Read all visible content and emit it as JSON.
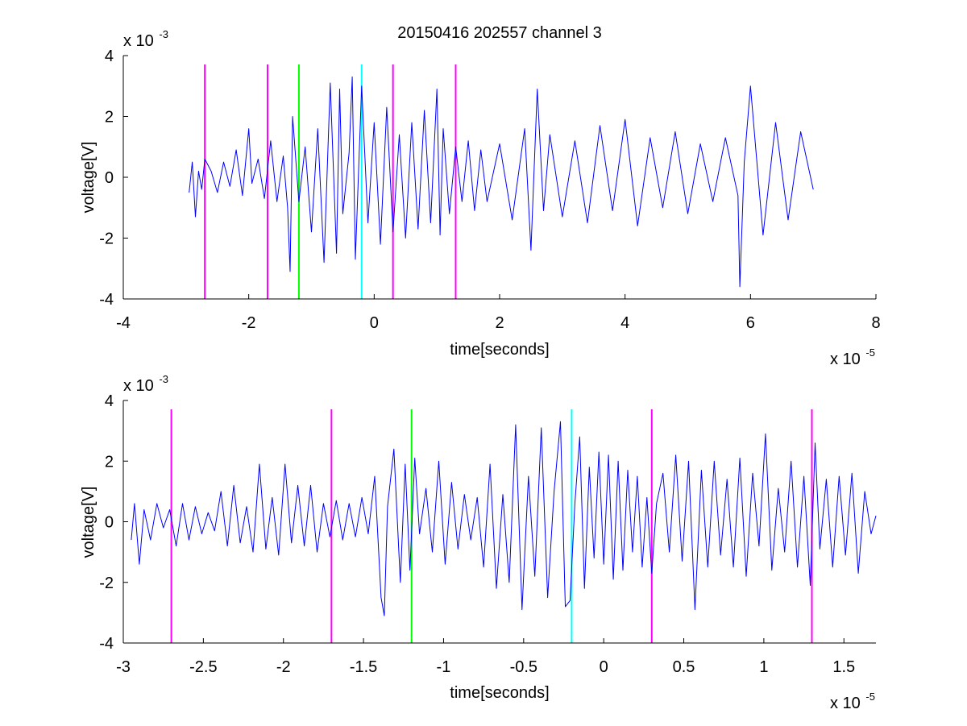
{
  "figure_title": "20150416 202557 channel 3",
  "chart_data": [
    {
      "type": "line",
      "title": "20150416 202557 channel 3",
      "xlabel": "time[seconds]",
      "ylabel": "voltage[V]",
      "x_multiplier": "x 10",
      "x_exponent": "-5",
      "y_multiplier": "x 10",
      "y_exponent": "-3",
      "xlim": [
        -4,
        8
      ],
      "ylim": [
        -4,
        4
      ],
      "x_ticks": [
        -4,
        -2,
        0,
        2,
        4,
        6,
        8
      ],
      "x_tick_labels": [
        "-4",
        "-2",
        "0",
        "2",
        "4",
        "6",
        "8"
      ],
      "y_ticks": [
        -4,
        -2,
        0,
        2,
        4
      ],
      "y_tick_labels": [
        "-4",
        "-2",
        "0",
        "2",
        "4"
      ],
      "grid": false,
      "signal": {
        "color": "#0000ff",
        "x": [
          -2.95,
          -2.9,
          -2.85,
          -2.8,
          -2.75,
          -2.7,
          -2.6,
          -2.5,
          -2.4,
          -2.3,
          -2.2,
          -2.1,
          -2.0,
          -1.95,
          -1.85,
          -1.75,
          -1.65,
          -1.55,
          -1.45,
          -1.38,
          -1.34,
          -1.3,
          -1.2,
          -1.1,
          -1.0,
          -0.9,
          -0.8,
          -0.7,
          -0.6,
          -0.55,
          -0.5,
          -0.4,
          -0.35,
          -0.3,
          -0.2,
          -0.1,
          0.0,
          0.1,
          0.2,
          0.3,
          0.4,
          0.5,
          0.6,
          0.7,
          0.8,
          0.9,
          1.0,
          1.05,
          1.1,
          1.2,
          1.3,
          1.4,
          1.5,
          1.6,
          1.7,
          1.8,
          2.0,
          2.2,
          2.4,
          2.5,
          2.6,
          2.7,
          2.8,
          3.0,
          3.2,
          3.4,
          3.6,
          3.8,
          4.0,
          4.2,
          4.4,
          4.6,
          4.8,
          5.0,
          5.2,
          5.4,
          5.6,
          5.8,
          5.83,
          5.9,
          6.0,
          6.2,
          6.4,
          6.6,
          6.8,
          7.0
        ],
        "y": [
          -0.5,
          0.5,
          -1.3,
          0.2,
          -0.4,
          0.6,
          0.2,
          -0.5,
          0.5,
          -0.3,
          0.9,
          -0.6,
          1.6,
          -0.2,
          0.6,
          -0.7,
          1.2,
          -0.8,
          0.7,
          -1.0,
          -3.1,
          2.0,
          -0.8,
          1.0,
          -1.8,
          1.6,
          -2.8,
          3.1,
          -2.5,
          2.9,
          -1.2,
          0.8,
          3.3,
          -2.7,
          3.0,
          -1.5,
          1.8,
          -2.2,
          2.3,
          -1.8,
          1.4,
          -2.0,
          1.8,
          -1.7,
          2.2,
          -1.5,
          2.9,
          -1.9,
          1.6,
          -1.2,
          1.0,
          -0.8,
          1.2,
          -1.1,
          0.9,
          -0.8,
          1.1,
          -1.4,
          1.6,
          -2.4,
          2.9,
          -1.1,
          1.4,
          -1.3,
          1.2,
          -1.5,
          1.7,
          -1.1,
          1.9,
          -1.6,
          1.3,
          -1.0,
          1.5,
          -1.2,
          1.1,
          -0.8,
          1.3,
          -0.6,
          -3.6,
          0.5,
          3.0,
          -1.9,
          1.8,
          -1.4,
          1.5,
          -0.4
        ]
      },
      "markers": [
        {
          "x": -2.7,
          "color": "#ff00ff"
        },
        {
          "x": -1.7,
          "color": "#ff00ff"
        },
        {
          "x": -1.2,
          "color": "#00ff00"
        },
        {
          "x": -0.2,
          "color": "#00ffff"
        },
        {
          "x": 0.3,
          "color": "#ff00ff"
        },
        {
          "x": 1.3,
          "color": "#ff00ff"
        }
      ]
    },
    {
      "type": "line",
      "title": "",
      "xlabel": "time[seconds]",
      "ylabel": "voltage[V]",
      "x_multiplier": "x 10",
      "x_exponent": "-5",
      "y_multiplier": "x 10",
      "y_exponent": "-3",
      "xlim": [
        -3.0,
        1.7
      ],
      "ylim": [
        -4,
        4
      ],
      "x_ticks": [
        -3,
        -2.5,
        -2,
        -1.5,
        -1,
        -0.5,
        0,
        0.5,
        1,
        1.5
      ],
      "x_tick_labels": [
        "-3",
        "-2.5",
        "-2",
        "-1.5",
        "-1",
        "-0.5",
        "0",
        "0.5",
        "1",
        "1.5"
      ],
      "y_ticks": [
        -4,
        -2,
        0,
        2,
        4
      ],
      "y_tick_labels": [
        "-4",
        "-2",
        "0",
        "2",
        "4"
      ],
      "grid": false,
      "signal": {
        "color": "#0000ff",
        "x": [
          -2.95,
          -2.93,
          -2.9,
          -2.87,
          -2.83,
          -2.79,
          -2.75,
          -2.71,
          -2.67,
          -2.63,
          -2.59,
          -2.55,
          -2.51,
          -2.47,
          -2.43,
          -2.39,
          -2.35,
          -2.31,
          -2.27,
          -2.23,
          -2.19,
          -2.15,
          -2.11,
          -2.07,
          -2.03,
          -1.99,
          -1.95,
          -1.91,
          -1.87,
          -1.83,
          -1.79,
          -1.75,
          -1.71,
          -1.67,
          -1.63,
          -1.59,
          -1.55,
          -1.51,
          -1.47,
          -1.43,
          -1.39,
          -1.37,
          -1.35,
          -1.31,
          -1.27,
          -1.24,
          -1.21,
          -1.18,
          -1.15,
          -1.11,
          -1.07,
          -1.03,
          -0.99,
          -0.95,
          -0.91,
          -0.87,
          -0.83,
          -0.79,
          -0.75,
          -0.71,
          -0.67,
          -0.63,
          -0.59,
          -0.55,
          -0.51,
          -0.47,
          -0.43,
          -0.39,
          -0.35,
          -0.31,
          -0.27,
          -0.24,
          -0.21,
          -0.18,
          -0.15,
          -0.12,
          -0.09,
          -0.06,
          -0.03,
          0.0,
          0.03,
          0.06,
          0.09,
          0.12,
          0.15,
          0.18,
          0.21,
          0.24,
          0.27,
          0.3,
          0.33,
          0.37,
          0.41,
          0.45,
          0.49,
          0.53,
          0.57,
          0.61,
          0.65,
          0.69,
          0.73,
          0.77,
          0.81,
          0.85,
          0.89,
          0.93,
          0.97,
          1.01,
          1.05,
          1.09,
          1.13,
          1.17,
          1.21,
          1.25,
          1.29,
          1.32,
          1.35,
          1.39,
          1.43,
          1.47,
          1.51,
          1.55,
          1.59,
          1.63,
          1.67,
          1.7
        ],
        "y": [
          -0.6,
          0.6,
          -1.4,
          0.4,
          -0.6,
          0.6,
          -0.2,
          0.4,
          -0.8,
          0.6,
          -0.6,
          0.5,
          -0.4,
          0.3,
          -0.3,
          1.0,
          -0.8,
          1.2,
          -0.7,
          0.5,
          -1.0,
          1.9,
          -0.9,
          0.8,
          -1.1,
          1.9,
          -0.7,
          1.2,
          -0.8,
          1.2,
          -1.0,
          0.6,
          -0.5,
          0.7,
          -0.6,
          0.6,
          -0.5,
          0.8,
          -0.4,
          1.5,
          -2.5,
          -3.1,
          0.5,
          2.4,
          -2.0,
          1.9,
          -1.6,
          2.1,
          -0.4,
          1.1,
          -1.0,
          2.0,
          -1.4,
          1.3,
          -0.9,
          0.9,
          -0.6,
          0.8,
          -1.5,
          1.9,
          -2.2,
          0.9,
          -2.0,
          3.2,
          -2.9,
          1.5,
          -1.8,
          3.1,
          -2.5,
          1.0,
          3.3,
          -2.8,
          -2.6,
          0.6,
          2.8,
          -2.2,
          1.8,
          -1.2,
          2.3,
          -1.4,
          2.2,
          -1.9,
          2.0,
          -1.6,
          1.7,
          -1.0,
          1.5,
          -1.5,
          0.8,
          -1.7,
          0.6,
          1.6,
          -1.0,
          2.2,
          -1.3,
          2.0,
          -2.9,
          1.7,
          -1.5,
          2.0,
          -1.1,
          1.4,
          -1.5,
          2.1,
          -1.8,
          1.6,
          -0.8,
          2.9,
          -1.6,
          1.1,
          -1.0,
          2.0,
          -1.5,
          1.5,
          -2.1,
          2.6,
          -0.9,
          1.4,
          -1.5,
          1.5,
          -1.1,
          1.6,
          -1.7,
          1.0,
          -0.4,
          0.2
        ]
      },
      "markers": [
        {
          "x": -2.7,
          "color": "#ff00ff"
        },
        {
          "x": -1.7,
          "color": "#ff00ff"
        },
        {
          "x": -1.2,
          "color": "#00ff00"
        },
        {
          "x": -0.2,
          "color": "#00ffff"
        },
        {
          "x": 0.3,
          "color": "#ff00ff"
        },
        {
          "x": 1.3,
          "color": "#ff00ff"
        }
      ]
    }
  ]
}
